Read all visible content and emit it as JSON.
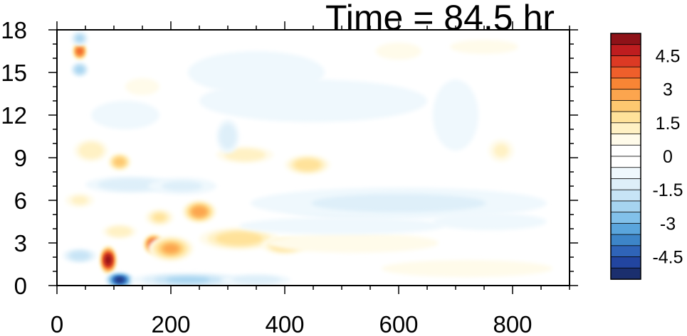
{
  "chart_data": {
    "type": "heatmap",
    "title": "Time = 84.5 hr",
    "xlabel": "",
    "ylabel": "",
    "xlim": [
      0,
      900
    ],
    "ylim": [
      0,
      18
    ],
    "x_ticks": [
      "0",
      "200",
      "400",
      "600",
      "800"
    ],
    "x_tick_values": [
      0,
      200,
      400,
      600,
      800
    ],
    "y_ticks": [
      "0",
      "3",
      "6",
      "9",
      "12",
      "15",
      "18"
    ],
    "y_tick_values": [
      0,
      3,
      6,
      9,
      12,
      15,
      18
    ],
    "colorbar": {
      "levels": [
        -5.5,
        -5,
        -4.5,
        -4,
        -3.5,
        -3,
        -2.5,
        -2,
        -1.5,
        -1,
        -0.5,
        0,
        0.5,
        1,
        1.5,
        2,
        2.5,
        3,
        3.5,
        4,
        4.5,
        5,
        5.5
      ],
      "colors": [
        "#1b2f6e",
        "#2245a0",
        "#2f64b8",
        "#3d85c8",
        "#5aa5dc",
        "#82c1ea",
        "#a6d4f0",
        "#c7e4f6",
        "#deeff9",
        "#eff8fd",
        "#ffffff",
        "#ffffff",
        "#fffbea",
        "#fff1c4",
        "#ffe29a",
        "#fdc870",
        "#fca54e",
        "#f88535",
        "#ef5f2b",
        "#dc3a24",
        "#be1d1f",
        "#8e1218"
      ],
      "tick_labels": [
        "4.5",
        "3",
        "1.5",
        "0",
        "-1.5",
        "-3",
        "-4.5"
      ],
      "tick_values": [
        4.5,
        3,
        1.5,
        0,
        -1.5,
        -3,
        -4.5
      ]
    },
    "features": [
      {
        "x": 90,
        "y": 1.8,
        "rx": 14,
        "ry": 1.0,
        "value": 5.2
      },
      {
        "x": 170,
        "y": 2.9,
        "rx": 18,
        "ry": 0.7,
        "value": 4.2
      },
      {
        "x": 200,
        "y": 2.6,
        "rx": 40,
        "ry": 0.9,
        "value": 2.5
      },
      {
        "x": 250,
        "y": 5.2,
        "rx": 30,
        "ry": 0.8,
        "value": 2.8
      },
      {
        "x": 180,
        "y": 4.8,
        "rx": 25,
        "ry": 0.6,
        "value": 1.5
      },
      {
        "x": 320,
        "y": 3.3,
        "rx": 70,
        "ry": 0.8,
        "value": 1.6
      },
      {
        "x": 400,
        "y": 2.8,
        "rx": 40,
        "ry": 0.6,
        "value": 1.8
      },
      {
        "x": 520,
        "y": 3.0,
        "rx": 150,
        "ry": 0.7,
        "value": 0.7
      },
      {
        "x": 720,
        "y": 1.2,
        "rx": 150,
        "ry": 0.6,
        "value": 0.8
      },
      {
        "x": 110,
        "y": 8.7,
        "rx": 20,
        "ry": 0.6,
        "value": 2.2
      },
      {
        "x": 60,
        "y": 9.5,
        "rx": 30,
        "ry": 0.8,
        "value": 1.2
      },
      {
        "x": 330,
        "y": 9.2,
        "rx": 50,
        "ry": 0.6,
        "value": 1.1
      },
      {
        "x": 440,
        "y": 8.5,
        "rx": 40,
        "ry": 0.7,
        "value": 1.6
      },
      {
        "x": 780,
        "y": 9.5,
        "rx": 22,
        "ry": 0.8,
        "value": 1.0
      },
      {
        "x": 40,
        "y": 16.5,
        "rx": 12,
        "ry": 0.6,
        "value": 3.8
      },
      {
        "x": 150,
        "y": 14.0,
        "rx": 30,
        "ry": 0.6,
        "value": 0.9
      },
      {
        "x": 40,
        "y": 6.0,
        "rx": 25,
        "ry": 0.5,
        "value": 1.0
      },
      {
        "x": 110,
        "y": 3.8,
        "rx": 30,
        "ry": 0.5,
        "value": 1.2
      },
      {
        "x": 750,
        "y": 16.8,
        "rx": 60,
        "ry": 0.5,
        "value": 0.6
      },
      {
        "x": 600,
        "y": 16.5,
        "rx": 40,
        "ry": 0.6,
        "value": 0.6
      },
      {
        "x": 110,
        "y": 0.4,
        "rx": 25,
        "ry": 0.5,
        "value": -5.0
      },
      {
        "x": 230,
        "y": 0.4,
        "rx": 100,
        "ry": 0.5,
        "value": -2.0
      },
      {
        "x": 350,
        "y": 0.4,
        "rx": 60,
        "ry": 0.4,
        "value": -1.2
      },
      {
        "x": 40,
        "y": 2.1,
        "rx": 30,
        "ry": 0.5,
        "value": -1.6
      },
      {
        "x": 540,
        "y": 5.6,
        "rx": 150,
        "ry": 0.9,
        "value": -2.0
      },
      {
        "x": 600,
        "y": 5.8,
        "rx": 260,
        "ry": 1.1,
        "value": -1.0
      },
      {
        "x": 500,
        "y": 4.2,
        "rx": 180,
        "ry": 0.6,
        "value": -0.7
      },
      {
        "x": 130,
        "y": 7.1,
        "rx": 80,
        "ry": 0.6,
        "value": -1.3
      },
      {
        "x": 220,
        "y": 7.0,
        "rx": 60,
        "ry": 0.6,
        "value": -1.0
      },
      {
        "x": 300,
        "y": 10.5,
        "rx": 20,
        "ry": 1.2,
        "value": -1.4
      },
      {
        "x": 40,
        "y": 15.2,
        "rx": 15,
        "ry": 0.5,
        "value": -2.2
      },
      {
        "x": 40,
        "y": 17.4,
        "rx": 15,
        "ry": 0.5,
        "value": -2.0
      },
      {
        "x": 450,
        "y": 13.0,
        "rx": 200,
        "ry": 1.5,
        "value": -0.6
      },
      {
        "x": 350,
        "y": 15.0,
        "rx": 120,
        "ry": 1.5,
        "value": -0.5
      },
      {
        "x": 120,
        "y": 12.0,
        "rx": 60,
        "ry": 1.0,
        "value": -0.8
      },
      {
        "x": 700,
        "y": 12.0,
        "rx": 40,
        "ry": 2.5,
        "value": -0.6
      },
      {
        "x": 760,
        "y": 4.5,
        "rx": 100,
        "ry": 0.6,
        "value": -0.7
      }
    ]
  }
}
